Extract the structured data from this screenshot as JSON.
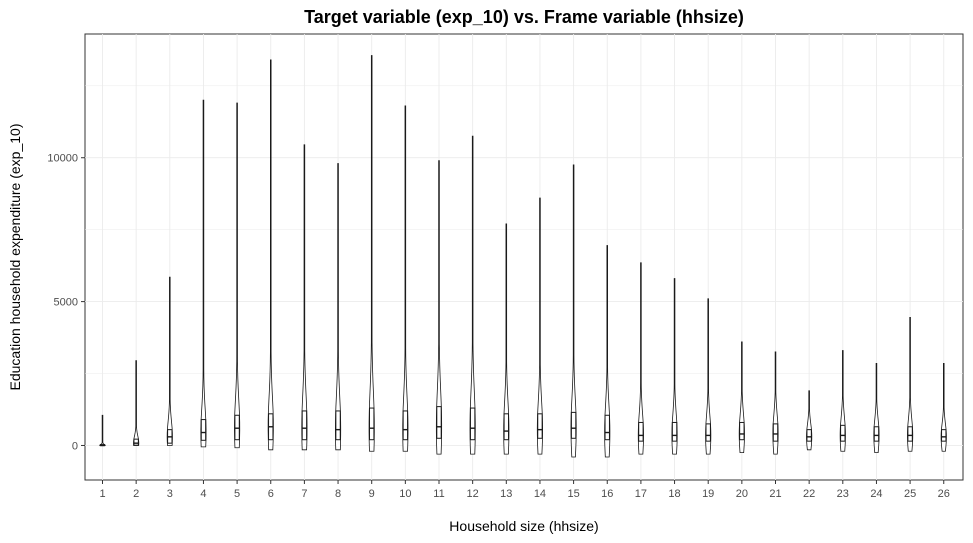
{
  "chart_data": {
    "type": "violin+box",
    "title": "Target variable (exp_10) vs. Frame variable (hhsize)",
    "xlabel": "Household size (hhsize)",
    "ylabel": "Education household expenditure (exp_10)",
    "ylim": [
      -1200,
      14300
    ],
    "yticks": [
      0,
      5000,
      10000
    ],
    "ytick_labels": [
      "0",
      "5000",
      "10000"
    ],
    "grid": true,
    "categories": [
      "1",
      "2",
      "3",
      "4",
      "5",
      "6",
      "7",
      "8",
      "9",
      "10",
      "11",
      "12",
      "13",
      "14",
      "15",
      "16",
      "17",
      "18",
      "19",
      "20",
      "21",
      "22",
      "23",
      "24",
      "25",
      "26"
    ],
    "series": [
      {
        "cat": "1",
        "min": 0,
        "max": 1050,
        "q1": 0,
        "median": 0,
        "q3": 30
      },
      {
        "cat": "2",
        "min": 0,
        "max": 2950,
        "q1": 10,
        "median": 80,
        "q3": 220
      },
      {
        "cat": "3",
        "min": 0,
        "max": 5850,
        "q1": 80,
        "median": 300,
        "q3": 550
      },
      {
        "cat": "4",
        "min": -50,
        "max": 12000,
        "q1": 180,
        "median": 450,
        "q3": 900
      },
      {
        "cat": "5",
        "min": -80,
        "max": 11900,
        "q1": 200,
        "median": 600,
        "q3": 1050
      },
      {
        "cat": "6",
        "min": -150,
        "max": 13400,
        "q1": 200,
        "median": 650,
        "q3": 1100
      },
      {
        "cat": "7",
        "min": -150,
        "max": 10450,
        "q1": 200,
        "median": 600,
        "q3": 1200
      },
      {
        "cat": "8",
        "min": -150,
        "max": 9800,
        "q1": 200,
        "median": 550,
        "q3": 1200
      },
      {
        "cat": "9",
        "min": -200,
        "max": 13550,
        "q1": 200,
        "median": 600,
        "q3": 1300
      },
      {
        "cat": "10",
        "min": -200,
        "max": 11800,
        "q1": 200,
        "median": 550,
        "q3": 1200
      },
      {
        "cat": "11",
        "min": -300,
        "max": 9900,
        "q1": 250,
        "median": 650,
        "q3": 1350
      },
      {
        "cat": "12",
        "min": -300,
        "max": 10750,
        "q1": 200,
        "median": 600,
        "q3": 1300
      },
      {
        "cat": "13",
        "min": -300,
        "max": 7700,
        "q1": 200,
        "median": 500,
        "q3": 1100
      },
      {
        "cat": "14",
        "min": -300,
        "max": 8600,
        "q1": 250,
        "median": 550,
        "q3": 1100
      },
      {
        "cat": "15",
        "min": -400,
        "max": 9750,
        "q1": 250,
        "median": 600,
        "q3": 1150
      },
      {
        "cat": "16",
        "min": -400,
        "max": 6950,
        "q1": 200,
        "median": 450,
        "q3": 1050
      },
      {
        "cat": "17",
        "min": -300,
        "max": 6350,
        "q1": 150,
        "median": 350,
        "q3": 800
      },
      {
        "cat": "18",
        "min": -300,
        "max": 5800,
        "q1": 150,
        "median": 350,
        "q3": 800
      },
      {
        "cat": "19",
        "min": -300,
        "max": 5100,
        "q1": 150,
        "median": 350,
        "q3": 750
      },
      {
        "cat": "20",
        "min": -250,
        "max": 3600,
        "q1": 200,
        "median": 400,
        "q3": 800
      },
      {
        "cat": "21",
        "min": -300,
        "max": 3250,
        "q1": 150,
        "median": 400,
        "q3": 750
      },
      {
        "cat": "22",
        "min": -150,
        "max": 1900,
        "q1": 150,
        "median": 300,
        "q3": 550
      },
      {
        "cat": "23",
        "min": -200,
        "max": 3300,
        "q1": 150,
        "median": 350,
        "q3": 700
      },
      {
        "cat": "24",
        "min": -250,
        "max": 2850,
        "q1": 150,
        "median": 350,
        "q3": 650
      },
      {
        "cat": "25",
        "min": -200,
        "max": 4450,
        "q1": 150,
        "median": 350,
        "q3": 650
      },
      {
        "cat": "26",
        "min": -200,
        "max": 2850,
        "q1": 150,
        "median": 300,
        "q3": 550
      }
    ]
  }
}
